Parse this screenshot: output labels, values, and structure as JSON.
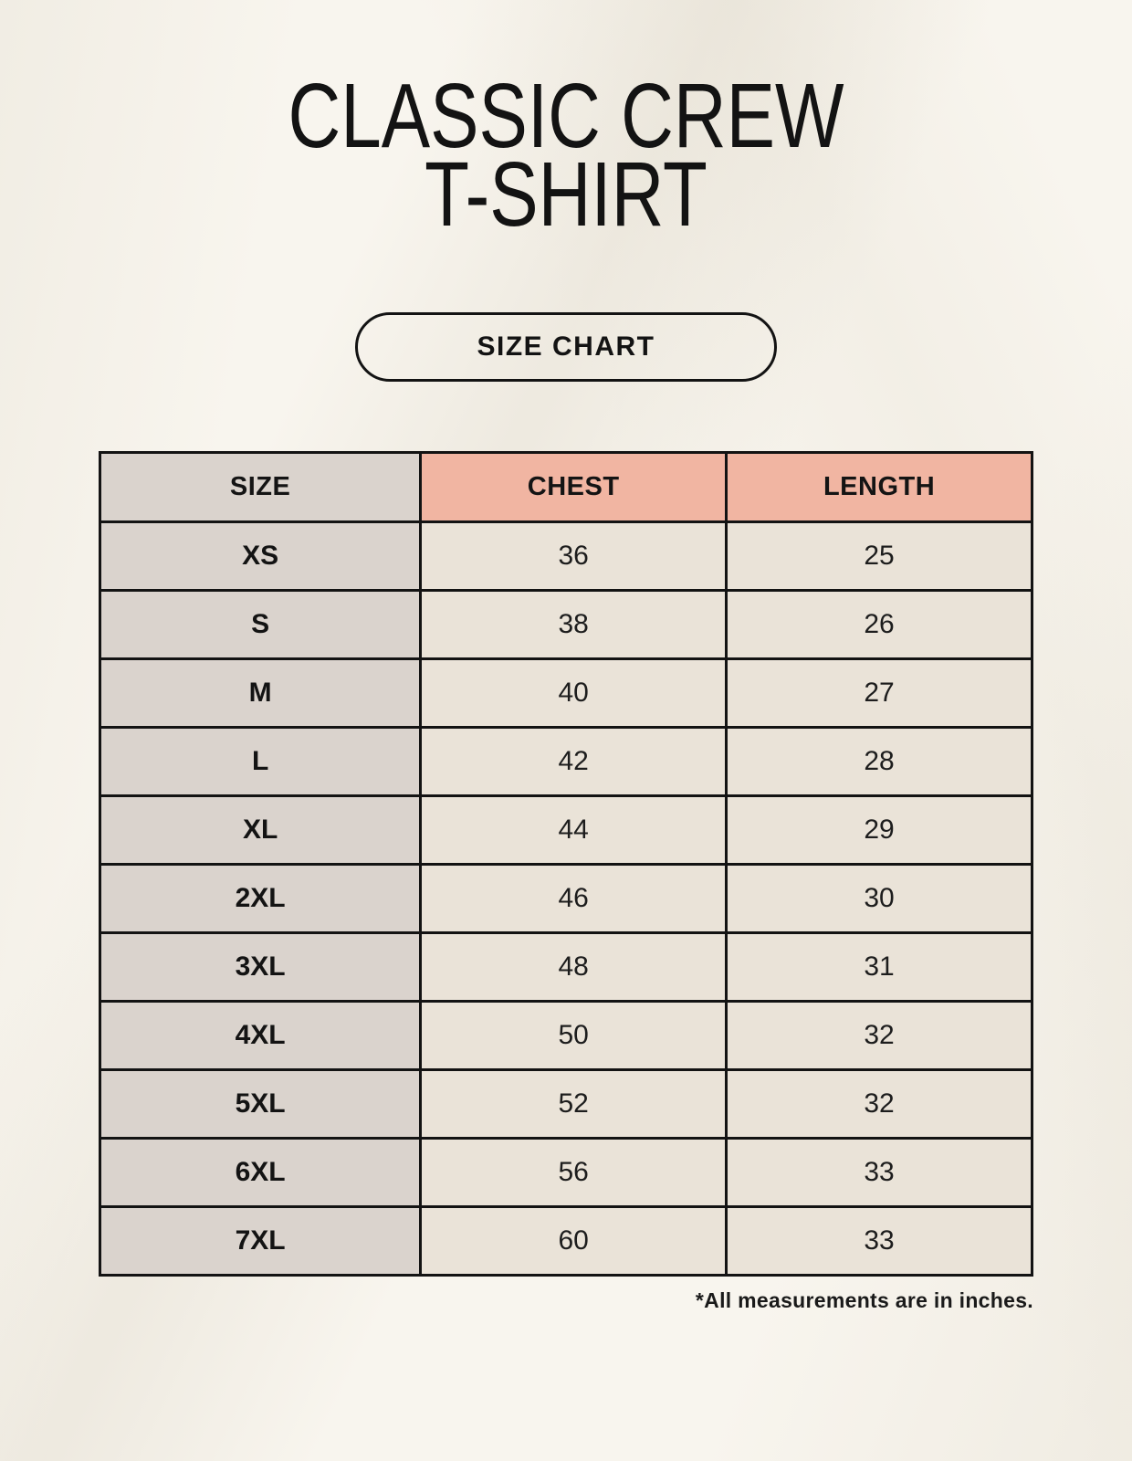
{
  "header": {
    "title_line1": "CLASSIC CREW",
    "title_line2": "T-SHIRT",
    "button_label": "SIZE CHART"
  },
  "chart_data": {
    "type": "table",
    "title": "CLASSIC CREW T-SHIRT",
    "subtitle": "SIZE CHART",
    "columns": [
      "SIZE",
      "CHEST",
      "LENGTH"
    ],
    "rows": [
      [
        "XS",
        "36",
        "25"
      ],
      [
        "S",
        "38",
        "26"
      ],
      [
        "M",
        "40",
        "27"
      ],
      [
        "L",
        "42",
        "28"
      ],
      [
        "XL",
        "44",
        "29"
      ],
      [
        "2XL",
        "46",
        "30"
      ],
      [
        "3XL",
        "48",
        "31"
      ],
      [
        "4XL",
        "50",
        "32"
      ],
      [
        "5XL",
        "52",
        "32"
      ],
      [
        "6XL",
        "56",
        "33"
      ],
      [
        "7XL",
        "60",
        "33"
      ]
    ],
    "units_note": "*All measurements are in inches."
  },
  "footnote": "*All measurements are in inches.",
  "colors": {
    "background": "#f8f5ee",
    "size_column": "#dad3cd",
    "header_accent": "#f1b5a2",
    "data_cell": "#eae3d8",
    "border_and_text": "#141414"
  }
}
